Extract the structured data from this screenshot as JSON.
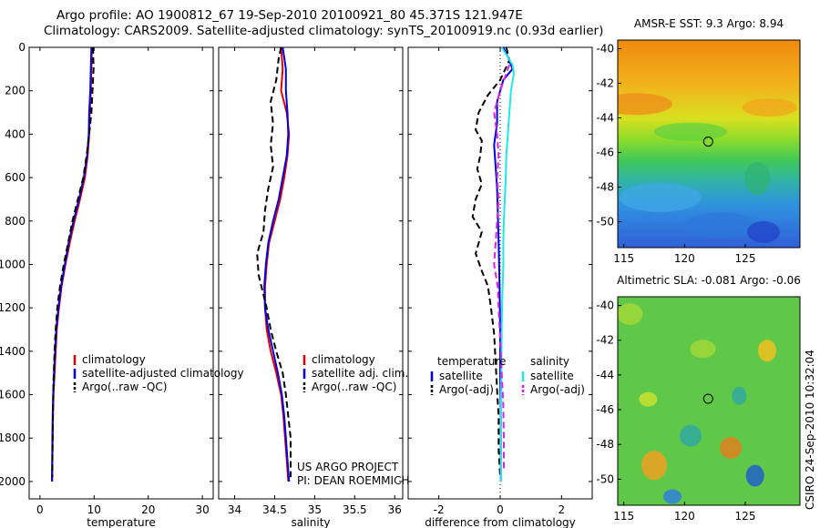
{
  "title_line1": "Argo profile: AO 1900812_67 19-Sep-2010 20100921_80 45.371S 121.947E",
  "title_line2": "Climatology: CARS2009. Satellite-adjusted climatology: synTS_20100919.nc (0.93d earlier)",
  "footer_project": "US ARGO PROJECT",
  "footer_pi": "PI: DEAN ROEMMICH",
  "side_stamp": "CSIRO 24-Sep-2010 10:32:04",
  "colors": {
    "climatology": "#e00000",
    "satellite": "#0000e0",
    "argo": "#000000",
    "sal_satellite": "#20e8e8",
    "sal_argo": "#e020e0"
  },
  "chart_data": [
    {
      "type": "line",
      "id": "temperature",
      "xlabel": "temperature",
      "ylabel": "",
      "xlim": [
        -2,
        32
      ],
      "xticks": [
        0,
        10,
        20,
        30
      ],
      "ylim": [
        2080,
        0
      ],
      "yticks": [
        0,
        200,
        400,
        600,
        800,
        1000,
        1200,
        1400,
        1600,
        1800,
        2000
      ],
      "y_inverted": true,
      "legend": {
        "position": "lower-right",
        "entries": [
          "climatology",
          "satellite-adjusted climatology",
          "Argo(..raw -QC)"
        ]
      },
      "series": [
        {
          "name": "climatology",
          "style": "solid",
          "color_key": "climatology",
          "points": [
            [
              9.6,
              0
            ],
            [
              9.5,
              100
            ],
            [
              9.4,
              200
            ],
            [
              9.2,
              300
            ],
            [
              9.1,
              400
            ],
            [
              8.8,
              500
            ],
            [
              8.3,
              600
            ],
            [
              7.4,
              700
            ],
            [
              6.4,
              800
            ],
            [
              5.5,
              900
            ],
            [
              4.7,
              1000
            ],
            [
              4.0,
              1100
            ],
            [
              3.5,
              1200
            ],
            [
              3.1,
              1300
            ],
            [
              2.9,
              1400
            ],
            [
              2.7,
              1500
            ],
            [
              2.5,
              1600
            ],
            [
              2.4,
              1700
            ],
            [
              2.35,
              1800
            ],
            [
              2.3,
              1900
            ],
            [
              2.25,
              2000
            ]
          ]
        },
        {
          "name": "satellite-adjusted climatology",
          "style": "solid",
          "color_key": "satellite",
          "points": [
            [
              9.5,
              0
            ],
            [
              9.4,
              100
            ],
            [
              9.3,
              200
            ],
            [
              9.1,
              300
            ],
            [
              9.0,
              400
            ],
            [
              8.7,
              500
            ],
            [
              8.1,
              600
            ],
            [
              7.2,
              700
            ],
            [
              6.2,
              800
            ],
            [
              5.3,
              900
            ],
            [
              4.6,
              1000
            ],
            [
              3.9,
              1100
            ],
            [
              3.4,
              1200
            ],
            [
              3.0,
              1300
            ],
            [
              2.8,
              1400
            ],
            [
              2.6,
              1500
            ],
            [
              2.45,
              1600
            ],
            [
              2.35,
              1700
            ],
            [
              2.3,
              1800
            ],
            [
              2.25,
              1900
            ],
            [
              2.2,
              2000
            ]
          ]
        },
        {
          "name": "Argo(..raw -QC)",
          "style": "dashed",
          "color_key": "argo",
          "points": [
            [
              9.8,
              0
            ],
            [
              9.9,
              100
            ],
            [
              9.7,
              200
            ],
            [
              9.5,
              300
            ],
            [
              9.1,
              400
            ],
            [
              8.6,
              500
            ],
            [
              8.0,
              600
            ],
            [
              7.0,
              700
            ],
            [
              6.0,
              800
            ],
            [
              5.2,
              900
            ],
            [
              4.4,
              1000
            ],
            [
              3.7,
              1100
            ],
            [
              3.2,
              1200
            ],
            [
              2.9,
              1300
            ],
            [
              2.7,
              1400
            ],
            [
              2.55,
              1500
            ],
            [
              2.45,
              1600
            ],
            [
              2.4,
              1700
            ],
            [
              2.35,
              1800
            ],
            [
              2.3,
              1900
            ],
            [
              2.3,
              1980
            ]
          ]
        }
      ]
    },
    {
      "type": "line",
      "id": "salinity",
      "xlabel": "salinity",
      "ylabel": "",
      "xlim": [
        33.8,
        36.1
      ],
      "xticks": [
        34,
        34.5,
        35,
        35.5,
        36
      ],
      "ylim": [
        2080,
        0
      ],
      "y_inverted": true,
      "legend": {
        "position": "lower-right",
        "entries": [
          "climatology",
          "satellite adj. clim.",
          "Argo(..raw -QC)"
        ]
      },
      "series": [
        {
          "name": "climatology",
          "style": "solid",
          "color_key": "climatology",
          "points": [
            [
              34.58,
              0
            ],
            [
              34.6,
              100
            ],
            [
              34.58,
              200
            ],
            [
              34.65,
              300
            ],
            [
              34.68,
              400
            ],
            [
              34.66,
              500
            ],
            [
              34.62,
              600
            ],
            [
              34.57,
              700
            ],
            [
              34.5,
              800
            ],
            [
              34.43,
              900
            ],
            [
              34.4,
              1000
            ],
            [
              34.38,
              1100
            ],
            [
              34.38,
              1200
            ],
            [
              34.4,
              1300
            ],
            [
              34.45,
              1400
            ],
            [
              34.52,
              1500
            ],
            [
              34.58,
              1600
            ],
            [
              34.61,
              1700
            ],
            [
              34.63,
              1800
            ],
            [
              34.65,
              1900
            ],
            [
              34.67,
              2000
            ]
          ]
        },
        {
          "name": "satellite adj. clim.",
          "style": "solid",
          "color_key": "satellite",
          "points": [
            [
              34.6,
              0
            ],
            [
              34.64,
              100
            ],
            [
              34.64,
              200
            ],
            [
              34.66,
              300
            ],
            [
              34.67,
              400
            ],
            [
              34.65,
              500
            ],
            [
              34.6,
              600
            ],
            [
              34.55,
              700
            ],
            [
              34.48,
              800
            ],
            [
              34.42,
              900
            ],
            [
              34.39,
              1000
            ],
            [
              34.37,
              1100
            ],
            [
              34.38,
              1200
            ],
            [
              34.42,
              1300
            ],
            [
              34.48,
              1400
            ],
            [
              34.54,
              1500
            ],
            [
              34.59,
              1600
            ],
            [
              34.62,
              1700
            ],
            [
              34.64,
              1800
            ],
            [
              34.66,
              1900
            ],
            [
              34.68,
              2000
            ]
          ]
        },
        {
          "name": "Argo(..raw -QC)",
          "style": "dashed",
          "color_key": "argo",
          "points": [
            [
              34.58,
              0
            ],
            [
              34.55,
              50
            ],
            [
              34.52,
              150
            ],
            [
              34.45,
              250
            ],
            [
              34.48,
              350
            ],
            [
              34.45,
              450
            ],
            [
              34.48,
              550
            ],
            [
              34.42,
              650
            ],
            [
              34.38,
              750
            ],
            [
              34.36,
              850
            ],
            [
              34.28,
              950
            ],
            [
              34.3,
              1050
            ],
            [
              34.4,
              1200
            ],
            [
              34.45,
              1300
            ],
            [
              34.52,
              1400
            ],
            [
              34.6,
              1500
            ],
            [
              34.64,
              1600
            ],
            [
              34.67,
              1700
            ],
            [
              34.7,
              1800
            ],
            [
              34.7,
              1900
            ],
            [
              34.7,
              1980
            ]
          ]
        }
      ]
    },
    {
      "type": "line",
      "id": "difference",
      "xlabel": "difference from climatology",
      "ylabel": "",
      "xlim": [
        -3,
        3
      ],
      "xticks": [
        -2,
        0,
        2
      ],
      "ylim": [
        2080,
        0
      ],
      "y_inverted": true,
      "legend": {
        "position": "lower-center",
        "entries": [
          "temperature",
          "satellite",
          "Argo(-adj)",
          "salinity",
          "satellite",
          "Argo(-adj)"
        ]
      },
      "series": [
        {
          "name": "satellite",
          "group": "temperature",
          "style": "solid",
          "color_key": "satellite",
          "points": [
            [
              0.1,
              0
            ],
            [
              0.3,
              60
            ],
            [
              0.4,
              100
            ],
            [
              0.1,
              150
            ],
            [
              -0.1,
              250
            ],
            [
              -0.1,
              350
            ],
            [
              -0.2,
              450
            ],
            [
              -0.15,
              550
            ],
            [
              -0.1,
              650
            ],
            [
              -0.08,
              750
            ],
            [
              -0.05,
              900
            ],
            [
              -0.02,
              1100
            ],
            [
              0,
              1300
            ],
            [
              0,
              1500
            ],
            [
              0.02,
              1700
            ],
            [
              0.02,
              1900
            ],
            [
              0.02,
              2000
            ]
          ]
        },
        {
          "name": "Argo(-adj)",
          "group": "temperature",
          "style": "dashed",
          "color_key": "argo",
          "points": [
            [
              0.2,
              0
            ],
            [
              0.3,
              60
            ],
            [
              0,
              150
            ],
            [
              -0.4,
              220
            ],
            [
              -0.7,
              300
            ],
            [
              -0.8,
              380
            ],
            [
              -0.6,
              430
            ],
            [
              -0.65,
              500
            ],
            [
              -0.75,
              560
            ],
            [
              -0.6,
              630
            ],
            [
              -0.8,
              700
            ],
            [
              -0.9,
              780
            ],
            [
              -0.6,
              850
            ],
            [
              -0.8,
              950
            ],
            [
              -0.6,
              1030
            ],
            [
              -0.4,
              1100
            ],
            [
              -0.3,
              1200
            ],
            [
              -0.2,
              1320
            ],
            [
              -0.15,
              1450
            ],
            [
              -0.1,
              1580
            ],
            [
              -0.05,
              1700
            ],
            [
              -0.05,
              1850
            ],
            [
              0,
              1980
            ]
          ]
        },
        {
          "name": "satellite",
          "group": "salinity",
          "style": "solid",
          "color_key": "sal_satellite",
          "points": [
            [
              0.05,
              0
            ],
            [
              0.4,
              80
            ],
            [
              0.45,
              120
            ],
            [
              0.35,
              200
            ],
            [
              0.3,
              300
            ],
            [
              0.25,
              400
            ],
            [
              0.2,
              500
            ],
            [
              0.18,
              600
            ],
            [
              0.15,
              700
            ],
            [
              0.12,
              800
            ],
            [
              0.1,
              900
            ],
            [
              0.1,
              1000
            ],
            [
              0.08,
              1100
            ],
            [
              0.06,
              1200
            ],
            [
              0.05,
              1300
            ],
            [
              0.04,
              1450
            ],
            [
              0.03,
              1600
            ],
            [
              0.02,
              1750
            ],
            [
              0.02,
              1900
            ],
            [
              0.02,
              2000
            ]
          ]
        },
        {
          "name": "Argo(-adj)",
          "group": "salinity",
          "style": "dashed",
          "color_key": "sal_argo",
          "points": [
            [
              0.3,
              80
            ],
            [
              0,
              200
            ],
            [
              -0.2,
              300
            ],
            [
              -0.1,
              400
            ],
            [
              -0.05,
              500
            ],
            [
              -0.1,
              600
            ],
            [
              -0.05,
              700
            ],
            [
              -0.1,
              800
            ],
            [
              -0.15,
              900
            ],
            [
              -0.2,
              1000
            ],
            [
              -0.08,
              1100
            ],
            [
              -0.05,
              1200
            ],
            [
              0,
              1350
            ],
            [
              0.05,
              1500
            ],
            [
              0.1,
              1650
            ],
            [
              0.12,
              1800
            ],
            [
              0.12,
              1950
            ]
          ]
        }
      ]
    },
    {
      "type": "heatmap",
      "id": "sst_map",
      "title": "AMSR-E SST: 9.3 Argo: 8.94",
      "xlim": [
        114.5,
        129.5
      ],
      "ylim": [
        -51.5,
        -39.5
      ],
      "xticks": [
        115,
        120,
        125
      ],
      "yticks": [
        -40,
        -42,
        -44,
        -46,
        -48,
        -50
      ],
      "marker": {
        "lon": 121.947,
        "lat": -45.371
      }
    },
    {
      "type": "heatmap",
      "id": "sla_map",
      "title": "Altimetric SLA: -0.081 Argo: -0.06",
      "xlim": [
        114.5,
        129.5
      ],
      "ylim": [
        -51.5,
        -39.5
      ],
      "xticks": [
        115,
        120,
        125
      ],
      "yticks": [
        -40,
        -42,
        -44,
        -46,
        -48,
        -50
      ],
      "marker": {
        "lon": 121.947,
        "lat": -45.371
      }
    }
  ]
}
